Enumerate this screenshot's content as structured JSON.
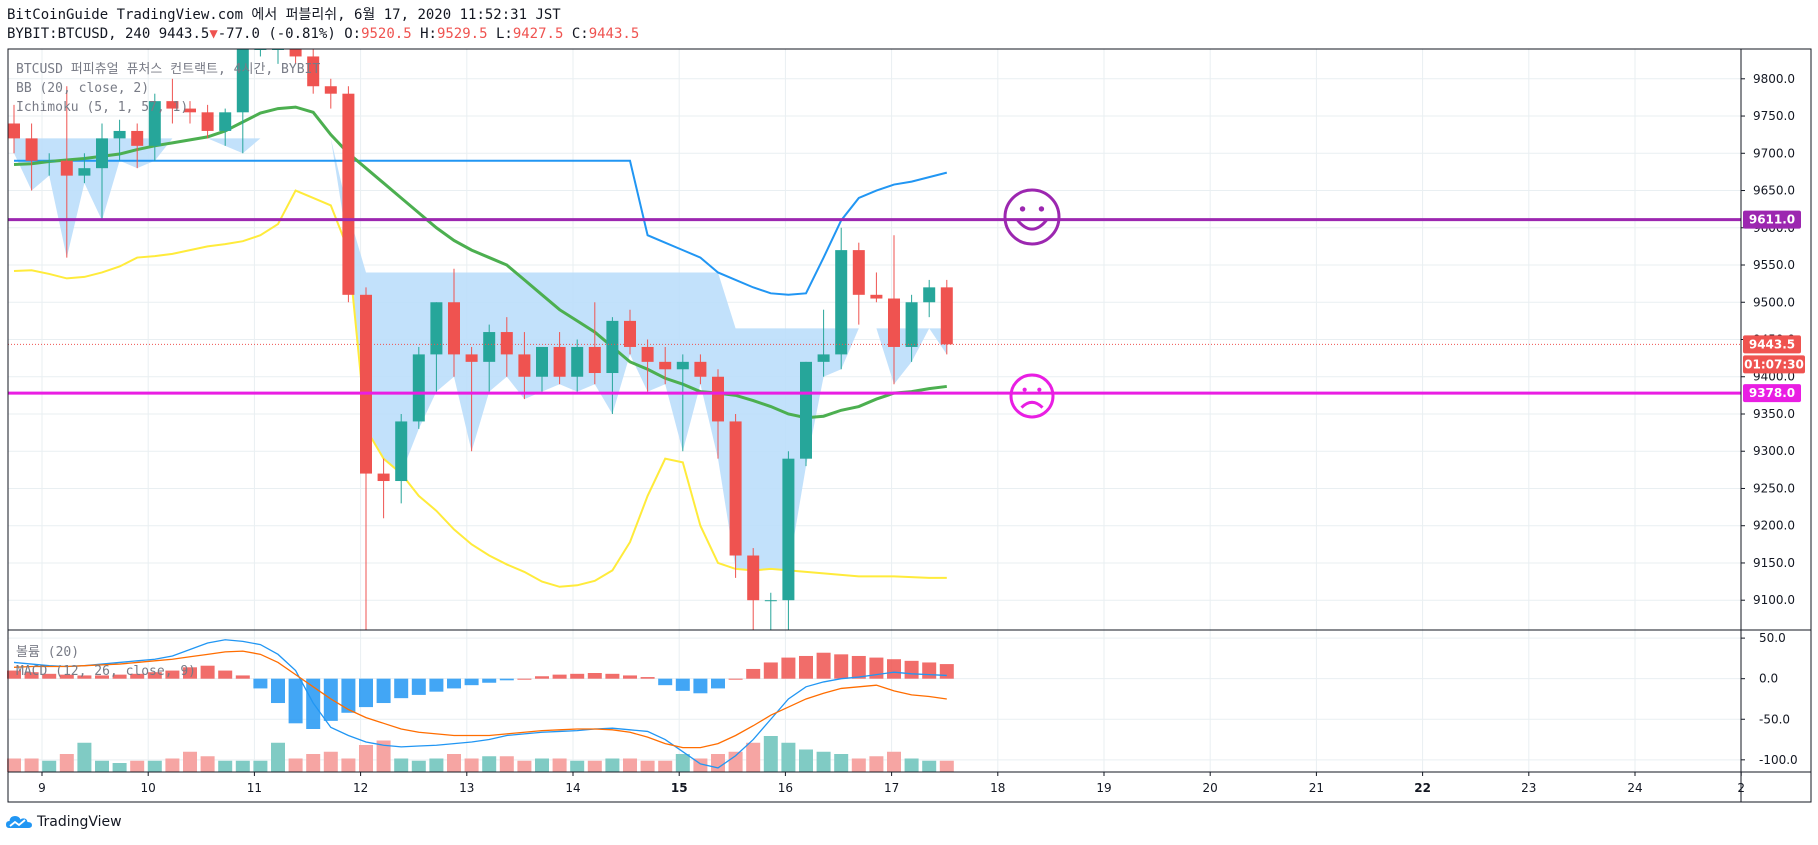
{
  "header": {
    "publish_line": "BitCoinGuide TradingView.com 에서 퍼블리쉬, 6월 17, 2020 11:52:31 JST",
    "symbol": "BYBIT:BTCUSD, 240",
    "last": "9443.5",
    "change_arrow": "▼",
    "change": "-77.0 (-0.81%)",
    "o_label": "O:",
    "o": "9520.5",
    "h_label": "H:",
    "h": "9529.5",
    "l_label": "L:",
    "l": "9427.5",
    "c_label": "C:",
    "c": "9443.5"
  },
  "footer": {
    "brand": "TradingView"
  },
  "chart_data": {
    "type": "candlestick",
    "legend": {
      "series_title": "BTCUSD 퍼피츄얼 퓨처스 컨트랙트, 4시간, BYBIT",
      "bb": "BB (20, close, 2)",
      "ichimoku": "Ichimoku (5, 1, 57, 1)",
      "volume": "볼륨 (20)",
      "macd": "MACD (12, 26, close, 9)"
    },
    "x_ticks": [
      "9",
      "10",
      "11",
      "12",
      "13",
      "14",
      "15",
      "16",
      "17",
      "18",
      "19",
      "20",
      "21",
      "22",
      "23",
      "24",
      "2"
    ],
    "y_ticks": [
      9100,
      9150,
      9200,
      9250,
      9300,
      9350,
      9400,
      9450,
      9500,
      9550,
      9600,
      9650,
      9700,
      9750,
      9800
    ],
    "ylim": [
      9060,
      9840
    ],
    "macd_ticks": [
      50.0,
      0.0,
      -50.0,
      -100.0
    ],
    "macd_ylim": [
      -115,
      60
    ],
    "candles": [
      [
        9740,
        9765,
        9700,
        9720
      ],
      [
        9720,
        9740,
        9650,
        9690
      ],
      [
        9690,
        9700,
        9670,
        9690
      ],
      [
        9690,
        9790,
        9560,
        9670
      ],
      [
        9670,
        9700,
        9660,
        9680
      ],
      [
        9680,
        9740,
        9610,
        9720
      ],
      [
        9720,
        9745,
        9690,
        9730
      ],
      [
        9730,
        9740,
        9680,
        9710
      ],
      [
        9710,
        9780,
        9690,
        9770
      ],
      [
        9770,
        9800,
        9740,
        9760
      ],
      [
        9760,
        9770,
        9740,
        9755
      ],
      [
        9755,
        9765,
        9720,
        9730
      ],
      [
        9730,
        9760,
        9710,
        9755
      ],
      [
        9755,
        9860,
        9700,
        9840
      ],
      [
        9840,
        9850,
        9830,
        9840
      ],
      [
        9840,
        9860,
        9820,
        9840
      ],
      [
        9840,
        9850,
        9820,
        9830
      ],
      [
        9830,
        9840,
        9780,
        9790
      ],
      [
        9790,
        9800,
        9760,
        9780
      ],
      [
        9780,
        9790,
        9500,
        9510
      ],
      [
        9510,
        9520,
        9060,
        9270
      ],
      [
        9270,
        9290,
        9210,
        9260
      ],
      [
        9260,
        9350,
        9230,
        9340
      ],
      [
        9340,
        9440,
        9330,
        9430
      ],
      [
        9430,
        9500,
        9380,
        9500
      ],
      [
        9500,
        9545,
        9400,
        9430
      ],
      [
        9430,
        9440,
        9300,
        9420
      ],
      [
        9420,
        9470,
        9380,
        9460
      ],
      [
        9460,
        9480,
        9400,
        9430
      ],
      [
        9430,
        9460,
        9370,
        9400
      ],
      [
        9400,
        9440,
        9380,
        9440
      ],
      [
        9440,
        9460,
        9390,
        9400
      ],
      [
        9400,
        9450,
        9380,
        9440
      ],
      [
        9440,
        9500,
        9390,
        9405
      ],
      [
        9405,
        9480,
        9350,
        9475
      ],
      [
        9475,
        9490,
        9430,
        9440
      ],
      [
        9440,
        9450,
        9380,
        9420
      ],
      [
        9420,
        9440,
        9390,
        9410
      ],
      [
        9410,
        9430,
        9300,
        9420
      ],
      [
        9420,
        9430,
        9390,
        9400
      ],
      [
        9400,
        9410,
        9290,
        9340
      ],
      [
        9340,
        9350,
        9130,
        9160
      ],
      [
        9160,
        9170,
        9060,
        9100
      ],
      [
        9100,
        9110,
        9060,
        9100
      ],
      [
        9100,
        9300,
        9060,
        9290
      ],
      [
        9290,
        9420,
        9280,
        9420
      ],
      [
        9420,
        9490,
        9400,
        9430
      ],
      [
        9430,
        9600,
        9410,
        9570
      ],
      [
        9570,
        9580,
        9470,
        9510
      ],
      [
        9510,
        9540,
        9500,
        9505
      ],
      [
        9505,
        9590,
        9390,
        9440
      ],
      [
        9440,
        9510,
        9420,
        9500
      ],
      [
        9500,
        9530,
        9480,
        9520
      ],
      [
        9520,
        9530,
        9430,
        9443.5
      ]
    ],
    "bb_basis": [
      9685,
      9686,
      9689,
      9691,
      9693,
      9696,
      9699,
      9705,
      9710,
      9714,
      9718,
      9722,
      9730,
      9742,
      9754,
      9760,
      9762,
      9755,
      9725,
      9700,
      9680,
      9660,
      9640,
      9620,
      9600,
      9583,
      9570,
      9560,
      9550,
      9530,
      9510,
      9490,
      9475,
      9460,
      9440,
      9420,
      9410,
      9398,
      9390,
      9380,
      9378,
      9375,
      9368,
      9360,
      9350,
      9345,
      9347,
      9355,
      9360,
      9370,
      9378,
      9380,
      9384,
      9387
    ],
    "ichimoku_base": [
      9690,
      9690,
      9690,
      9690,
      9690,
      9690,
      9690,
      9690,
      9690,
      9690,
      9690,
      9690,
      9690,
      9690,
      9690,
      9690,
      9690,
      9690,
      9690,
      9690,
      9690,
      9690,
      9690,
      9690,
      9690,
      9690,
      9690,
      9690,
      9690,
      9690,
      9690,
      9690,
      9690,
      9690,
      9690,
      9690,
      9590,
      9580,
      9570,
      9560,
      9540,
      9530,
      9520,
      9512,
      9510,
      9512,
      9560,
      9610,
      9640,
      9650,
      9658,
      9662,
      9668,
      9674
    ],
    "ichimoku_span_low": [
      9542,
      9543,
      9538,
      9532,
      9534,
      9540,
      9548,
      9560,
      9562,
      9565,
      9570,
      9575,
      9578,
      9582,
      9590,
      9605,
      9650,
      9640,
      9630,
      9570,
      9330,
      9290,
      9270,
      9240,
      9220,
      9195,
      9175,
      9160,
      9148,
      9138,
      9125,
      9118,
      9120,
      9126,
      9140,
      9178,
      9240,
      9290,
      9285,
      9200,
      9150,
      9142,
      9140,
      9142,
      9140,
      9138,
      9136,
      9134,
      9132,
      9132,
      9132,
      9131,
      9130,
      9130
    ],
    "ichimoku_cloud_top": [
      9720,
      9720,
      9720,
      9720,
      9720,
      9720,
      9720,
      9720,
      9720,
      9720,
      9720,
      9720,
      9720,
      9720,
      9720,
      9720,
      9720,
      9720,
      9720,
      9620,
      9540,
      9540,
      9540,
      9540,
      9540,
      9540,
      9540,
      9540,
      9540,
      9540,
      9540,
      9540,
      9540,
      9540,
      9540,
      9540,
      9540,
      9540,
      9540,
      9540,
      9540,
      9465,
      9465,
      9465,
      9465,
      9465,
      9465,
      9465,
      9465,
      9465,
      9465,
      9465,
      9465,
      9465
    ],
    "resistance": 9611.0,
    "support": 9378.0,
    "price_label": "9443.5",
    "countdown": "01:07:30",
    "resistance_label": "9611.0",
    "support_label": "9378.0",
    "macd_line": [
      20,
      18,
      16,
      15,
      16,
      18,
      20,
      22,
      24,
      28,
      36,
      44,
      48,
      46,
      42,
      30,
      10,
      -30,
      -60,
      -70,
      -78,
      -82,
      -84,
      -83,
      -82,
      -80,
      -78,
      -75,
      -70,
      -68,
      -66,
      -65,
      -64,
      -62,
      -61,
      -63,
      -65,
      -75,
      -90,
      -105,
      -110,
      -95,
      -75,
      -50,
      -25,
      -10,
      -4,
      0,
      2,
      5,
      8,
      6,
      5,
      4
    ],
    "macd_signal": [
      14,
      15,
      15,
      15,
      16,
      17,
      18,
      20,
      22,
      24,
      27,
      30,
      33,
      34,
      30,
      20,
      5,
      -10,
      -25,
      -38,
      -48,
      -55,
      -62,
      -66,
      -68,
      -70,
      -70,
      -70,
      -68,
      -66,
      -64,
      -63,
      -62,
      -62,
      -63,
      -66,
      -72,
      -80,
      -85,
      -85,
      -80,
      -70,
      -58,
      -45,
      -35,
      -25,
      -18,
      -12,
      -10,
      -8,
      -15,
      -20,
      -22,
      -25
    ],
    "macd_hist": [
      10,
      8,
      6,
      5,
      4,
      4,
      5,
      6,
      8,
      10,
      14,
      16,
      10,
      4,
      -12,
      -30,
      -55,
      -62,
      -52,
      -42,
      -35,
      -30,
      -24,
      -20,
      -16,
      -12,
      -8,
      -5,
      -2,
      0,
      3,
      5,
      6,
      7,
      6,
      4,
      2,
      -8,
      -15,
      -18,
      -12,
      0,
      12,
      20,
      26,
      28,
      32,
      30,
      28,
      26,
      24,
      22,
      20,
      18
    ],
    "volume": [
      6,
      6,
      5,
      8,
      13,
      5,
      4,
      5,
      5,
      6,
      9,
      7,
      5,
      5,
      5,
      13,
      6,
      8,
      9,
      6,
      12,
      14,
      6,
      5,
      6,
      8,
      6,
      7,
      7,
      5,
      6,
      6,
      5,
      5,
      6,
      6,
      5,
      5,
      8,
      6,
      8,
      9,
      13,
      16,
      13,
      10,
      9,
      8,
      6,
      7,
      9,
      6,
      5,
      5
    ]
  }
}
